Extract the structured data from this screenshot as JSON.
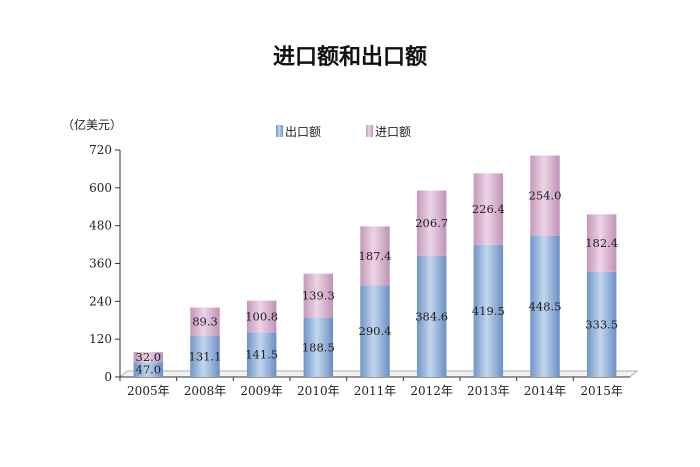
{
  "chart_data": {
    "type": "bar",
    "stacked": true,
    "title": "进口额和出口额",
    "unit_label": "（亿美元）",
    "categories": [
      "2005年",
      "2008年",
      "2009年",
      "2010年",
      "2011年",
      "2012年",
      "2013年",
      "2014年",
      "2015年"
    ],
    "series": [
      {
        "name": "出口额",
        "values": [
          47.0,
          131.1,
          141.5,
          188.5,
          290.4,
          384.6,
          419.5,
          448.5,
          333.5
        ],
        "color": "#8aaed8"
      },
      {
        "name": "进口额",
        "values": [
          32.0,
          89.3,
          100.8,
          139.3,
          187.4,
          206.7,
          226.4,
          254.0,
          182.4
        ],
        "color": "#d8b0cf"
      }
    ],
    "value_labels": {
      "出口额": [
        "47.0",
        "131.1",
        "141.5",
        "188.5",
        "290.4",
        "384.6",
        "419.5",
        "448.5",
        "333.5"
      ],
      "进口额": [
        "32.0",
        "89.3",
        "100.8",
        "139.3",
        "187.4",
        "206.7",
        "226.4",
        "254.0",
        "182.4"
      ]
    },
    "ylim": [
      0,
      720
    ],
    "yticks": [
      0,
      120,
      240,
      360,
      480,
      600,
      720
    ],
    "grid": false,
    "legend_position": "top"
  }
}
